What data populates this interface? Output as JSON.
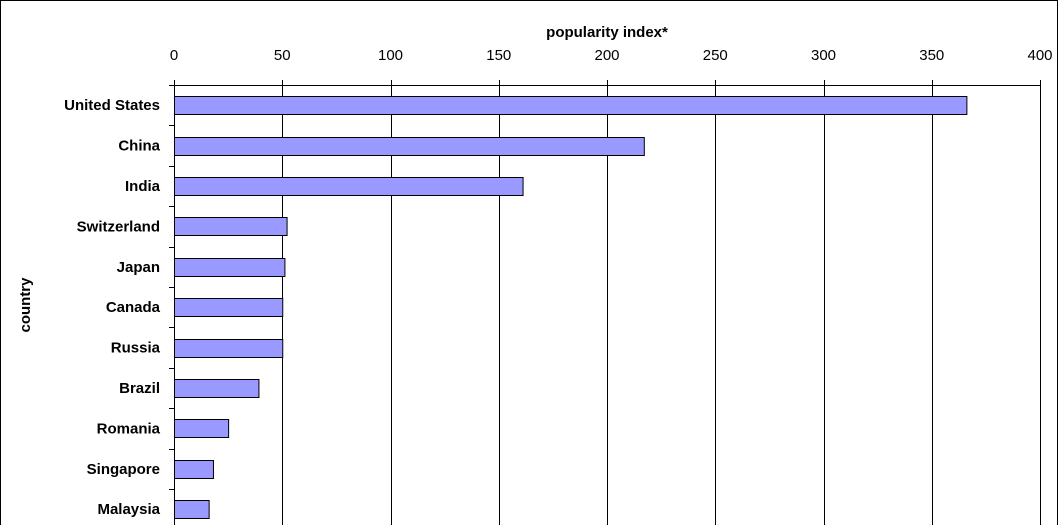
{
  "chart_data": {
    "type": "bar",
    "orientation": "horizontal",
    "xlabel": "popularity index*",
    "ylabel": "country",
    "xlim": [
      0,
      400
    ],
    "x_ticks": [
      "0",
      "50",
      "100",
      "150",
      "200",
      "250",
      "300",
      "350",
      "400"
    ],
    "grid": "vertical",
    "categories": [
      "United States",
      "China",
      "India",
      "Switzerland",
      "Japan",
      "Canada",
      "Russia",
      "Brazil",
      "Romania",
      "Singapore",
      "Malaysia"
    ],
    "values": [
      366,
      217,
      161,
      52,
      51,
      50,
      50,
      39,
      25,
      18,
      16
    ],
    "colors": {
      "bar_fill": "#9999ff",
      "bar_stroke": "#000000",
      "grid": "#000000"
    }
  }
}
